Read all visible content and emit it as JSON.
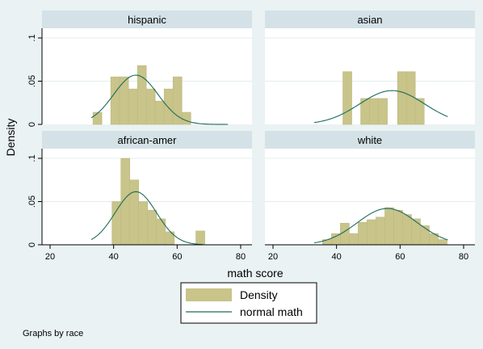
{
  "chart_data": {
    "type": "bar",
    "xlabel": "math score",
    "ylabel": "Density",
    "xlim": [
      20,
      80
    ],
    "ylim": [
      0,
      0.1
    ],
    "x_ticks": [
      20,
      40,
      60,
      80
    ],
    "y_ticks": [
      {
        "value": 0,
        "label": "0"
      },
      {
        "value": 0.05,
        "label": ".05"
      },
      {
        "value": 0.1,
        "label": ".1"
      }
    ],
    "legend": {
      "position": "bottom",
      "entries": [
        "Density",
        "normal math"
      ]
    },
    "note": "Graphs by race",
    "colors": {
      "bar": "#c8c48a",
      "bar_edge": "#bdb980",
      "curve": "#1d6b5a",
      "strip": "#d4e2e8",
      "plot_bg": "#ffffff",
      "page_bg": "#eaf2f3",
      "grid": "#e4ecef"
    },
    "bin_width": 2.8,
    "panels": [
      {
        "title": "hispanic",
        "bins": [
          {
            "x0": 33.5,
            "density": 0.014
          },
          {
            "x0": 39.1,
            "density": 0.055
          },
          {
            "x0": 41.9,
            "density": 0.055
          },
          {
            "x0": 44.7,
            "density": 0.041
          },
          {
            "x0": 47.5,
            "density": 0.068
          },
          {
            "x0": 50.3,
            "density": 0.041
          },
          {
            "x0": 53.1,
            "density": 0.027
          },
          {
            "x0": 55.9,
            "density": 0.041
          },
          {
            "x0": 58.7,
            "density": 0.055
          },
          {
            "x0": 61.5,
            "density": 0.014
          }
        ],
        "normal": {
          "mean": 47,
          "sd": 7,
          "x_range": [
            33,
            76
          ]
        }
      },
      {
        "title": "asian",
        "bins": [
          {
            "x0": 42.0,
            "density": 0.061
          },
          {
            "x0": 47.6,
            "density": 0.03
          },
          {
            "x0": 50.4,
            "density": 0.03
          },
          {
            "x0": 53.2,
            "density": 0.03
          },
          {
            "x0": 59.2,
            "density": 0.061
          },
          {
            "x0": 62.0,
            "density": 0.061
          },
          {
            "x0": 64.8,
            "density": 0.03
          }
        ],
        "normal": {
          "mean": 57.5,
          "sd": 10.2,
          "x_range": [
            33,
            75
          ]
        }
      },
      {
        "title": "african-amer",
        "bins": [
          {
            "x0": 39.5,
            "density": 0.05
          },
          {
            "x0": 42.3,
            "density": 0.1
          },
          {
            "x0": 45.1,
            "density": 0.075
          },
          {
            "x0": 47.9,
            "density": 0.05
          },
          {
            "x0": 50.7,
            "density": 0.04
          },
          {
            "x0": 53.5,
            "density": 0.03
          },
          {
            "x0": 56.3,
            "density": 0.015
          },
          {
            "x0": 65.9,
            "density": 0.016
          }
        ],
        "normal": {
          "mean": 47,
          "sd": 6.5,
          "x_range": [
            33,
            68
          ]
        }
      },
      {
        "title": "white",
        "bins": [
          {
            "x0": 35.6,
            "density": 0.006
          },
          {
            "x0": 38.4,
            "density": 0.013
          },
          {
            "x0": 41.2,
            "density": 0.025
          },
          {
            "x0": 44.0,
            "density": 0.013
          },
          {
            "x0": 46.8,
            "density": 0.026
          },
          {
            "x0": 49.6,
            "density": 0.029
          },
          {
            "x0": 52.4,
            "density": 0.032
          },
          {
            "x0": 55.2,
            "density": 0.043
          },
          {
            "x0": 58.0,
            "density": 0.04
          },
          {
            "x0": 60.8,
            "density": 0.035
          },
          {
            "x0": 63.6,
            "density": 0.03
          },
          {
            "x0": 66.4,
            "density": 0.022
          },
          {
            "x0": 69.2,
            "density": 0.013
          },
          {
            "x0": 72.0,
            "density": 0.006
          }
        ],
        "normal": {
          "mean": 56,
          "sd": 9.5,
          "x_range": [
            33,
            75
          ]
        }
      }
    ]
  }
}
